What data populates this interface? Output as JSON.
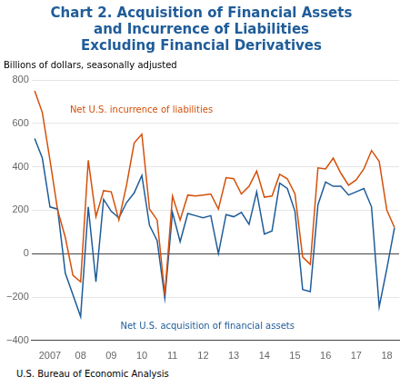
{
  "chart_data": {
    "type": "line",
    "title": "Chart 2. Acquisition of Financial Assets\nand Incurrence of Liabilities\nExcluding Financial Derivatives",
    "title_color": "#1F5C99",
    "subtitle": "Billions of dollars, seasonally adjusted",
    "footer": "U.S. Bureau of Economic Analysis",
    "x": [
      2006.5,
      2006.75,
      2007,
      2007.25,
      2007.5,
      2007.75,
      2008,
      2008.25,
      2008.5,
      2008.75,
      2009,
      2009.25,
      2009.5,
      2009.75,
      2010,
      2010.25,
      2010.5,
      2010.75,
      2011,
      2011.25,
      2011.5,
      2011.75,
      2012,
      2012.25,
      2012.5,
      2012.75,
      2013,
      2013.25,
      2013.5,
      2013.75,
      2014,
      2014.25,
      2014.5,
      2014.75,
      2015,
      2015.25,
      2015.5,
      2015.75,
      2016,
      2016.25,
      2016.5,
      2016.75,
      2017,
      2017.25,
      2017.5,
      2017.75,
      2018,
      2018.25
    ],
    "series": [
      {
        "name": "Net U.S. incurrence of liabilities",
        "color": "#D4500A",
        "values": [
          750,
          650,
          430,
          200,
          75,
          -100,
          -130,
          430,
          170,
          290,
          285,
          155,
          315,
          510,
          550,
          205,
          155,
          -190,
          265,
          155,
          270,
          265,
          270,
          275,
          205,
          350,
          345,
          275,
          310,
          380,
          260,
          265,
          365,
          345,
          275,
          -15,
          -50,
          395,
          390,
          440,
          370,
          315,
          340,
          390,
          475,
          425,
          200,
          120
        ]
      },
      {
        "name": "Net U.S. acquisition of financial assets",
        "color": "#1F5C99",
        "values": [
          530,
          440,
          215,
          205,
          -90,
          -190,
          -290,
          215,
          -130,
          250,
          195,
          165,
          235,
          280,
          360,
          130,
          60,
          -205,
          190,
          55,
          185,
          175,
          165,
          175,
          0,
          180,
          170,
          190,
          135,
          285,
          90,
          105,
          325,
          300,
          195,
          -165,
          -175,
          225,
          330,
          310,
          310,
          270,
          285,
          300,
          215,
          -245,
          -70,
          120
        ]
      }
    ],
    "annotations": [
      {
        "text": "Net U.S. incurrence of liabilities",
        "x": 2007.65,
        "y": 650,
        "color": "#D4500A"
      },
      {
        "text": "Net U.S. acquisition of financial assets",
        "x": 2009.3,
        "y": -345,
        "color": "#1F5C99"
      }
    ],
    "xlim": [
      2006.4,
      2018.4
    ],
    "xticks": [
      2007,
      {
        "value": 2008,
        "label": "08"
      },
      {
        "value": 2009,
        "label": "09"
      },
      {
        "value": 2010,
        "label": "10"
      },
      {
        "value": 2011,
        "label": "11"
      },
      {
        "value": 2012,
        "label": "12"
      },
      {
        "value": 2013,
        "label": "13"
      },
      {
        "value": 2014,
        "label": "14"
      },
      {
        "value": 2015,
        "label": "15"
      },
      {
        "value": 2016,
        "label": "16"
      },
      {
        "value": 2017,
        "label": "17"
      },
      {
        "value": 2018,
        "label": "18"
      }
    ],
    "ylim": [
      -400,
      800
    ],
    "yticks": [
      {
        "value": -400,
        "label": "−400"
      },
      {
        "value": -200,
        "label": "−200"
      },
      0,
      200,
      400,
      600,
      800
    ],
    "grid": true
  }
}
